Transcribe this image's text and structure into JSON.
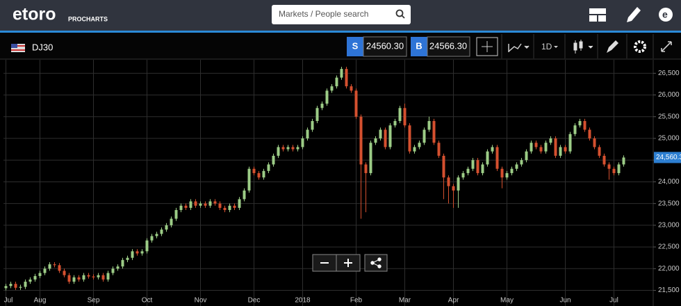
{
  "header": {
    "logo": "etoro",
    "product": "PROCHARTS",
    "search_placeholder": "Markets / People search"
  },
  "toolbar": {
    "symbol": "DJ30",
    "sell_tag": "S",
    "sell_price": "24560.30",
    "buy_tag": "B",
    "buy_price": "24566.30",
    "timeframe": "1D"
  },
  "chart_data": {
    "type": "candlestick",
    "categories": [
      "Jul",
      null,
      null,
      null,
      null,
      null,
      null,
      "Aug",
      null,
      null,
      null,
      null,
      null,
      null,
      null,
      null,
      null,
      null,
      "Sep",
      null,
      null,
      null,
      null,
      null,
      null,
      null,
      null,
      null,
      null,
      "Oct",
      null,
      null,
      null,
      null,
      null,
      null,
      null,
      null,
      null,
      null,
      "Nov",
      null,
      null,
      null,
      null,
      null,
      null,
      null,
      null,
      null,
      null,
      "Dec",
      null,
      null,
      null,
      null,
      null,
      null,
      null,
      null,
      null,
      "2018",
      null,
      null,
      null,
      null,
      null,
      null,
      null,
      null,
      null,
      null,
      "Feb",
      null,
      null,
      null,
      null,
      null,
      null,
      null,
      null,
      null,
      "Mar",
      null,
      null,
      null,
      null,
      null,
      null,
      null,
      null,
      null,
      "Apr",
      null,
      null,
      null,
      null,
      null,
      null,
      null,
      null,
      null,
      null,
      "May",
      null,
      null,
      null,
      null,
      null,
      null,
      null,
      null,
      null,
      null,
      null,
      "Jun",
      null,
      null,
      null,
      null,
      null,
      null,
      null,
      null,
      null,
      "Jul",
      null,
      null
    ],
    "open": [
      21550,
      21600,
      21650,
      21560,
      21580,
      21700,
      21750,
      21830,
      21900,
      22000,
      22100,
      22080,
      21950,
      21850,
      21700,
      21800,
      21750,
      21850,
      21820,
      21800,
      21850,
      21750,
      21900,
      22000,
      22050,
      22200,
      22250,
      22400,
      22350,
      22400,
      22650,
      22750,
      22800,
      22900,
      23000,
      23150,
      23350,
      23450,
      23400,
      23550,
      23450,
      23500,
      23450,
      23550,
      23500,
      23400,
      23350,
      23450,
      23400,
      23600,
      23800,
      24300,
      24200,
      24100,
      24250,
      24400,
      24600,
      24800,
      24750,
      24800,
      24750,
      24800,
      25000,
      25200,
      25400,
      25700,
      25800,
      26100,
      26200,
      26400,
      26600,
      26200,
      26100,
      25500,
      24400,
      24200,
      24900,
      25000,
      25200,
      24800,
      25300,
      25400,
      25700,
      25300,
      24700,
      24800,
      24900,
      25200,
      25400,
      24900,
      24600,
      24100,
      23900,
      23800,
      24100,
      24200,
      24300,
      24500,
      24200,
      24400,
      24700,
      24800,
      24300,
      24100,
      24200,
      24300,
      24400,
      24500,
      24700,
      24900,
      24800,
      24700,
      24900,
      25000,
      24600,
      24800,
      24700,
      25100,
      25300,
      25400,
      25200,
      25000,
      24800,
      24600,
      24400,
      24300,
      24200,
      24400
    ],
    "high": [
      21650,
      21700,
      21700,
      21630,
      21750,
      21800,
      21880,
      21950,
      22050,
      22150,
      22150,
      22130,
      22000,
      21900,
      21850,
      21850,
      21900,
      21900,
      21870,
      21900,
      21900,
      21950,
      22050,
      22100,
      22250,
      22300,
      22450,
      22450,
      22450,
      22700,
      22800,
      22850,
      22950,
      23050,
      23200,
      23400,
      23500,
      23500,
      23600,
      23600,
      23550,
      23550,
      23600,
      23600,
      23550,
      23450,
      23500,
      23500,
      23650,
      23850,
      24350,
      24350,
      24250,
      24300,
      24450,
      24650,
      24850,
      24850,
      24850,
      24850,
      24850,
      25050,
      25250,
      25450,
      25750,
      25850,
      26150,
      26250,
      26450,
      26650,
      26650,
      26250,
      26150,
      25550,
      24450,
      24950,
      25050,
      25250,
      25250,
      25350,
      25450,
      25750,
      25800,
      25350,
      24850,
      24950,
      25250,
      25500,
      25450,
      24950,
      24650,
      24150,
      23950,
      24150,
      24250,
      24350,
      24550,
      24550,
      24450,
      24750,
      24850,
      24850,
      24350,
      24250,
      24350,
      24450,
      24550,
      24750,
      24950,
      24950,
      24850,
      24950,
      25050,
      25050,
      24850,
      24850,
      25150,
      25350,
      25450,
      25450,
      25250,
      25050,
      24850,
      24650,
      24450,
      24350,
      24450,
      24610
    ],
    "low": [
      21500,
      21550,
      21510,
      21510,
      21530,
      21650,
      21700,
      21780,
      21850,
      21950,
      22030,
      21900,
      21800,
      21650,
      21650,
      21700,
      21700,
      21770,
      21750,
      21750,
      21700,
      21700,
      21850,
      21950,
      22000,
      22150,
      22200,
      22300,
      22300,
      22350,
      22600,
      22700,
      22750,
      22850,
      22950,
      23100,
      23300,
      23350,
      23350,
      23400,
      23400,
      23400,
      23400,
      23450,
      23350,
      23300,
      23300,
      23350,
      23350,
      23550,
      23750,
      24150,
      24050,
      24050,
      24200,
      24350,
      24550,
      24700,
      24700,
      24700,
      24700,
      24750,
      24950,
      25150,
      25350,
      25650,
      25750,
      26050,
      26150,
      26350,
      26150,
      26050,
      25450,
      23150,
      23300,
      24150,
      24850,
      24950,
      24750,
      24750,
      25250,
      25350,
      25250,
      24650,
      24650,
      24750,
      24850,
      25150,
      24850,
      24550,
      23600,
      23500,
      23400,
      23400,
      24050,
      24150,
      24250,
      24150,
      24150,
      24350,
      24650,
      24250,
      23850,
      24050,
      24150,
      24250,
      24350,
      24450,
      24650,
      24750,
      24650,
      24650,
      24850,
      24550,
      24550,
      24650,
      24650,
      25050,
      25250,
      25150,
      24950,
      24750,
      24550,
      24350,
      24050,
      24150,
      24150,
      24350
    ],
    "close": [
      21600,
      21650,
      21560,
      21580,
      21700,
      21750,
      21830,
      21900,
      22000,
      22100,
      22080,
      21950,
      21850,
      21700,
      21800,
      21750,
      21850,
      21820,
      21800,
      21850,
      21750,
      21900,
      22000,
      22050,
      22200,
      22250,
      22400,
      22350,
      22400,
      22650,
      22750,
      22800,
      22900,
      23000,
      23150,
      23350,
      23450,
      23400,
      23550,
      23450,
      23500,
      23450,
      23550,
      23500,
      23400,
      23350,
      23450,
      23400,
      23600,
      23800,
      24300,
      24200,
      24100,
      24250,
      24400,
      24600,
      24800,
      24750,
      24800,
      24750,
      24800,
      25000,
      25200,
      25400,
      25700,
      25800,
      26100,
      26200,
      26400,
      26600,
      26200,
      26100,
      25500,
      24400,
      24200,
      24900,
      25000,
      25200,
      24800,
      25300,
      25400,
      25700,
      25300,
      24700,
      24800,
      24900,
      25200,
      25400,
      24900,
      24600,
      24100,
      23900,
      23800,
      24100,
      24200,
      24300,
      24500,
      24200,
      24400,
      24700,
      24800,
      24300,
      24100,
      24200,
      24300,
      24400,
      24500,
      24700,
      24900,
      24800,
      24700,
      24900,
      25000,
      24600,
      24800,
      24700,
      25100,
      25300,
      25400,
      25200,
      25000,
      24800,
      24600,
      24400,
      24300,
      24200,
      24400,
      24560
    ],
    "up_color": "#9ccc86",
    "down_color": "#d4502f",
    "ylim": [
      21140,
      26810
    ],
    "yticks": [
      {
        "value": 21500,
        "label": "21,500"
      },
      {
        "value": 22000,
        "label": "22,000"
      },
      {
        "value": 22500,
        "label": "22,500"
      },
      {
        "value": 23000,
        "label": "23,000"
      },
      {
        "value": 23500,
        "label": "23,500"
      },
      {
        "value": 24000,
        "label": "24,000"
      },
      {
        "value": 24500,
        "label": "24,500"
      },
      {
        "value": 25000,
        "label": "25,000"
      },
      {
        "value": 25500,
        "label": "25,500"
      },
      {
        "value": 26000,
        "label": "26,000"
      },
      {
        "value": 26500,
        "label": "26,500"
      }
    ],
    "current_price": {
      "value": 24560.3,
      "label": "24,560.3"
    },
    "grid": true
  }
}
